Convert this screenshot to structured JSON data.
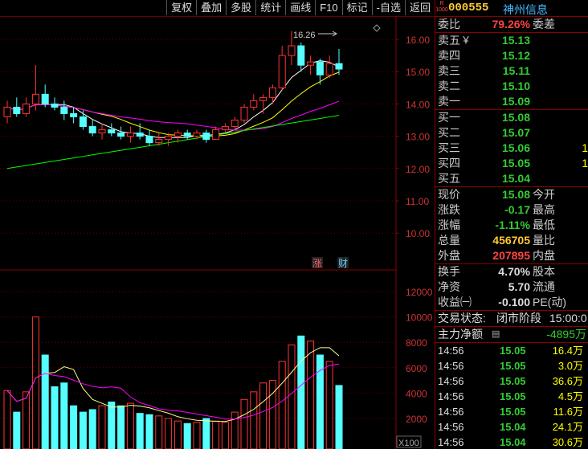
{
  "toolbar": [
    "复权",
    "叠加",
    "多股",
    "统计",
    "画线",
    "F10",
    "标记",
    "-自选",
    "返回"
  ],
  "stock": {
    "code": "000555",
    "name": "神州信息",
    "badge_top": "R",
    "badge_bottom": "1000"
  },
  "kline_axis": [
    "16.00",
    "15.00",
    "14.00",
    "13.00",
    "12.00",
    "11.00",
    "10.00"
  ],
  "vol_axis": [
    "12000",
    "10000",
    "8000",
    "6000",
    "4000",
    "2000"
  ],
  "vol_unit": "X100",
  "annotations": {
    "high": "16.26",
    "zhang": "涨",
    "cai": "财"
  },
  "weibi": {
    "label": "委比",
    "value": "79.26%",
    "label2": "委差"
  },
  "sell": [
    {
      "label": "卖五",
      "mark": "￥",
      "price": "15.13"
    },
    {
      "label": "卖四",
      "mark": "",
      "price": "15.12"
    },
    {
      "label": "卖三",
      "mark": "",
      "price": "15.11"
    },
    {
      "label": "卖二",
      "mark": "",
      "price": "15.10"
    },
    {
      "label": "卖一",
      "mark": "",
      "price": "15.09"
    }
  ],
  "buy": [
    {
      "label": "买一",
      "price": "15.08",
      "vol": ""
    },
    {
      "label": "买二",
      "price": "15.07",
      "vol": ""
    },
    {
      "label": "买三",
      "price": "15.06",
      "vol": "1"
    },
    {
      "label": "买四",
      "price": "15.05",
      "vol": "1"
    },
    {
      "label": "买五",
      "price": "15.04",
      "vol": ""
    }
  ],
  "quote": [
    {
      "l1": "现价",
      "v": "15.08",
      "cls": "g",
      "l2": "今开"
    },
    {
      "l1": "涨跌",
      "v": "-0.17",
      "cls": "g",
      "l2": "最高"
    },
    {
      "l1": "涨幅",
      "v": "-1.11%",
      "cls": "g",
      "l2": "最低"
    },
    {
      "l1": "总量",
      "v": "456705",
      "cls": "y",
      "l2": "量比"
    },
    {
      "l1": "外盘",
      "v": "207895",
      "cls": "r",
      "l2": "内盘"
    }
  ],
  "fin": [
    {
      "l1": "换手",
      "v": "4.70%",
      "l2": "股本"
    },
    {
      "l1": "净资",
      "v": "5.70",
      "l2": "流通"
    },
    {
      "l1": "收益㈠",
      "v": "-0.100",
      "l2": "PE(动)"
    }
  ],
  "status": {
    "label": "交易状态:",
    "value": "闭市阶段",
    "time": "15:00:0"
  },
  "mainflow": {
    "label": "主力净额",
    "value": "-4895万"
  },
  "ticks": [
    {
      "time": "14:56",
      "price": "15.05",
      "vol": "16.4万"
    },
    {
      "time": "14:56",
      "price": "15.05",
      "vol": "3.0万"
    },
    {
      "time": "14:56",
      "price": "15.05",
      "vol": "36.6万"
    },
    {
      "time": "14:56",
      "price": "15.05",
      "vol": "4.5万"
    },
    {
      "time": "14:56",
      "price": "15.05",
      "vol": "11.6万"
    },
    {
      "time": "14:56",
      "price": "15.04",
      "vol": "24.1万"
    },
    {
      "time": "14:56",
      "price": "15.04",
      "vol": "30.6万"
    }
  ],
  "chart_data": {
    "type": "candlestick",
    "ylim": [
      9.5,
      16.5
    ],
    "candles": [
      {
        "o": 13.6,
        "h": 14.1,
        "l": 13.4,
        "c": 13.9
      },
      {
        "o": 13.9,
        "h": 14.2,
        "l": 13.6,
        "c": 13.7
      },
      {
        "o": 13.7,
        "h": 14.2,
        "l": 13.6,
        "c": 14.0
      },
      {
        "o": 14.0,
        "h": 15.2,
        "l": 13.8,
        "c": 14.3
      },
      {
        "o": 14.3,
        "h": 14.6,
        "l": 13.9,
        "c": 14.0
      },
      {
        "o": 14.0,
        "h": 14.2,
        "l": 13.8,
        "c": 13.9
      },
      {
        "o": 13.9,
        "h": 14.1,
        "l": 13.5,
        "c": 13.7
      },
      {
        "o": 13.7,
        "h": 13.9,
        "l": 13.4,
        "c": 13.6
      },
      {
        "o": 13.6,
        "h": 13.8,
        "l": 13.2,
        "c": 13.3
      },
      {
        "o": 13.3,
        "h": 13.5,
        "l": 13.0,
        "c": 13.1
      },
      {
        "o": 13.1,
        "h": 13.4,
        "l": 12.9,
        "c": 13.2
      },
      {
        "o": 13.2,
        "h": 13.4,
        "l": 13.0,
        "c": 13.1
      },
      {
        "o": 13.1,
        "h": 13.3,
        "l": 12.9,
        "c": 13.0
      },
      {
        "o": 13.0,
        "h": 13.3,
        "l": 12.8,
        "c": 13.1
      },
      {
        "o": 13.1,
        "h": 13.4,
        "l": 12.9,
        "c": 13.0
      },
      {
        "o": 13.0,
        "h": 13.2,
        "l": 12.7,
        "c": 12.8
      },
      {
        "o": 12.8,
        "h": 13.1,
        "l": 12.7,
        "c": 12.9
      },
      {
        "o": 12.9,
        "h": 13.1,
        "l": 12.7,
        "c": 13.0
      },
      {
        "o": 13.0,
        "h": 13.2,
        "l": 12.8,
        "c": 13.1
      },
      {
        "o": 13.1,
        "h": 13.2,
        "l": 12.9,
        "c": 13.0
      },
      {
        "o": 13.0,
        "h": 13.2,
        "l": 12.9,
        "c": 13.1
      },
      {
        "o": 13.1,
        "h": 13.2,
        "l": 12.8,
        "c": 12.9
      },
      {
        "o": 12.9,
        "h": 13.3,
        "l": 12.9,
        "c": 13.2
      },
      {
        "o": 13.2,
        "h": 13.4,
        "l": 13.1,
        "c": 13.3
      },
      {
        "o": 13.3,
        "h": 13.6,
        "l": 13.2,
        "c": 13.5
      },
      {
        "o": 13.5,
        "h": 14.0,
        "l": 13.4,
        "c": 13.9
      },
      {
        "o": 13.9,
        "h": 14.3,
        "l": 13.8,
        "c": 14.1
      },
      {
        "o": 14.1,
        "h": 14.3,
        "l": 13.7,
        "c": 14.2
      },
      {
        "o": 14.2,
        "h": 14.6,
        "l": 14.0,
        "c": 14.5
      },
      {
        "o": 14.5,
        "h": 15.8,
        "l": 14.4,
        "c": 15.5
      },
      {
        "o": 15.5,
        "h": 16.26,
        "l": 15.2,
        "c": 15.8
      },
      {
        "o": 15.8,
        "h": 15.9,
        "l": 15.0,
        "c": 15.2
      },
      {
        "o": 15.2,
        "h": 15.5,
        "l": 14.9,
        "c": 15.3
      },
      {
        "o": 15.3,
        "h": 15.4,
        "l": 14.6,
        "c": 14.9
      },
      {
        "o": 14.9,
        "h": 15.5,
        "l": 14.8,
        "c": 15.25
      },
      {
        "o": 15.25,
        "h": 15.7,
        "l": 14.9,
        "c": 15.08
      }
    ],
    "volumes": [
      4200,
      2500,
      4100,
      10000,
      7000,
      4500,
      4800,
      3000,
      2500,
      2700,
      3000,
      3300,
      3000,
      3200,
      2400,
      2300,
      2200,
      2000,
      1800,
      1600,
      1700,
      2000,
      1800,
      1700,
      2500,
      3500,
      4100,
      4800,
      5000,
      6500,
      7800,
      8500,
      8100,
      7000,
      6500,
      4600
    ]
  }
}
